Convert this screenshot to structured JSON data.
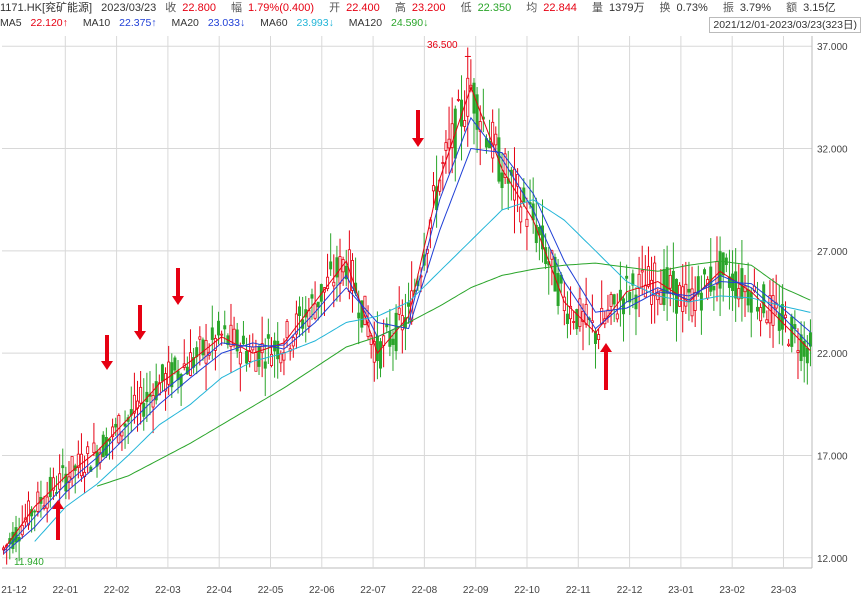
{
  "header": {
    "symbol": "1171.HK[兖矿能源]",
    "date": "2023/03/23",
    "close_label": "收",
    "close": "22.800",
    "range_label": "幅",
    "change": "1.79%(0.400)",
    "open_label": "开",
    "open": "22.400",
    "high_label": "高",
    "high": "23.200",
    "low_label": "低",
    "low": "22.350",
    "avg_label": "均",
    "avg": "22.844",
    "volume_label": "量",
    "volume": "1379万",
    "turnover_label": "换",
    "turnover": "0.73%",
    "amplitude_label": "振",
    "amplitude": "3.79%",
    "amount_label": "额",
    "amount": "3.15亿",
    "period": "2021/12/01-2023/03/23(323日)"
  },
  "ma_legend": [
    {
      "name": "MA5",
      "value": "22.120↑",
      "color": "#e60012"
    },
    {
      "name": "MA10",
      "value": "22.375↑",
      "color": "#1f3fd6"
    },
    {
      "name": "MA20",
      "value": "23.033↓",
      "color": "#1f3fd6"
    },
    {
      "name": "MA60",
      "value": "23.993↓",
      "color": "#22b5d8"
    },
    {
      "name": "MA120",
      "value": "24.590↓",
      "color": "#2aa52a"
    }
  ],
  "colors": {
    "up": "#e60012",
    "down": "#2aa52a",
    "ma5": "#e60012",
    "ma10": "#1f3fd6",
    "ma20": "#1f3fd6",
    "ma60": "#22b5d8",
    "ma120": "#2aa52a",
    "grid": "#d8d8d8",
    "arrow": "#e60012"
  },
  "chart_data": {
    "type": "candlestick",
    "y_axis": {
      "ticks": [
        "12.000",
        "17.000",
        "22.000",
        "27.000",
        "32.000",
        "37.000"
      ],
      "range": [
        11.5,
        37.5
      ],
      "side": "right"
    },
    "x_axis": {
      "ticks": [
        "21-12",
        "22-01",
        "22-02",
        "22-03",
        "22-04",
        "22-05",
        "22-06",
        "22-07",
        "22-08",
        "22-09",
        "22-10",
        "22-11",
        "22-12",
        "23-01",
        "23-02",
        "23-03"
      ]
    },
    "grid": true,
    "max_label": "36.500",
    "min_label": "11.940",
    "series": [
      {
        "name": "MA5",
        "points": [
          [
            0,
            12.4
          ],
          [
            10,
            14.5
          ],
          [
            20,
            16.0
          ],
          [
            30,
            17.2
          ],
          [
            40,
            18.8
          ],
          [
            50,
            20.5
          ],
          [
            60,
            21.6
          ],
          [
            70,
            22.8
          ],
          [
            80,
            22.0
          ],
          [
            90,
            22.5
          ],
          [
            100,
            24.5
          ],
          [
            110,
            26.5
          ],
          [
            120,
            22.0
          ],
          [
            130,
            23.8
          ],
          [
            140,
            30.5
          ],
          [
            150,
            35.0
          ],
          [
            160,
            31.0
          ],
          [
            170,
            28.5
          ],
          [
            180,
            24.5
          ],
          [
            190,
            23.0
          ],
          [
            200,
            25.0
          ],
          [
            210,
            25.5
          ],
          [
            220,
            24.5
          ],
          [
            230,
            26.0
          ],
          [
            240,
            25.0
          ],
          [
            250,
            23.5
          ],
          [
            259,
            22.12
          ]
        ]
      },
      {
        "name": "MA10",
        "points": [
          [
            0,
            12.3
          ],
          [
            10,
            14.0
          ],
          [
            20,
            15.6
          ],
          [
            30,
            16.9
          ],
          [
            40,
            18.5
          ],
          [
            50,
            20.0
          ],
          [
            60,
            21.2
          ],
          [
            70,
            22.5
          ],
          [
            80,
            22.3
          ],
          [
            90,
            22.4
          ],
          [
            100,
            24.0
          ],
          [
            110,
            25.8
          ],
          [
            120,
            22.8
          ],
          [
            130,
            23.5
          ],
          [
            140,
            29.5
          ],
          [
            150,
            33.5
          ],
          [
            160,
            31.5
          ],
          [
            170,
            29.0
          ],
          [
            180,
            25.5
          ],
          [
            190,
            23.2
          ],
          [
            200,
            24.5
          ],
          [
            210,
            25.2
          ],
          [
            220,
            24.6
          ],
          [
            230,
            25.8
          ],
          [
            240,
            25.2
          ],
          [
            250,
            23.8
          ],
          [
            259,
            22.375
          ]
        ]
      },
      {
        "name": "MA20",
        "points": [
          [
            0,
            12.2
          ],
          [
            10,
            13.5
          ],
          [
            20,
            15.2
          ],
          [
            30,
            16.5
          ],
          [
            40,
            18.0
          ],
          [
            50,
            19.5
          ],
          [
            60,
            20.8
          ],
          [
            70,
            22.0
          ],
          [
            80,
            22.5
          ],
          [
            90,
            22.2
          ],
          [
            100,
            23.5
          ],
          [
            110,
            25.2
          ],
          [
            120,
            23.5
          ],
          [
            130,
            23.2
          ],
          [
            140,
            28.0
          ],
          [
            150,
            32.0
          ],
          [
            160,
            31.8
          ],
          [
            170,
            29.8
          ],
          [
            180,
            26.5
          ],
          [
            190,
            24.0
          ],
          [
            200,
            24.2
          ],
          [
            210,
            25.0
          ],
          [
            220,
            24.8
          ],
          [
            230,
            25.5
          ],
          [
            240,
            25.4
          ],
          [
            250,
            24.2
          ],
          [
            259,
            23.033
          ]
        ]
      },
      {
        "name": "MA60",
        "points": [
          [
            10,
            12.8
          ],
          [
            20,
            14.5
          ],
          [
            30,
            15.6
          ],
          [
            40,
            17.0
          ],
          [
            50,
            18.5
          ],
          [
            60,
            19.5
          ],
          [
            70,
            20.8
          ],
          [
            80,
            21.6
          ],
          [
            90,
            22.0
          ],
          [
            100,
            22.6
          ],
          [
            110,
            23.5
          ],
          [
            120,
            23.8
          ],
          [
            130,
            24.5
          ],
          [
            140,
            26.0
          ],
          [
            150,
            27.5
          ],
          [
            160,
            29.0
          ],
          [
            170,
            29.5
          ],
          [
            180,
            28.5
          ],
          [
            190,
            27.0
          ],
          [
            200,
            25.5
          ],
          [
            210,
            24.8
          ],
          [
            220,
            24.5
          ],
          [
            230,
            24.8
          ],
          [
            240,
            24.7
          ],
          [
            250,
            24.3
          ],
          [
            259,
            23.993
          ]
        ]
      },
      {
        "name": "MA120",
        "points": [
          [
            30,
            15.5
          ],
          [
            40,
            16.0
          ],
          [
            50,
            16.8
          ],
          [
            60,
            17.6
          ],
          [
            70,
            18.5
          ],
          [
            80,
            19.4
          ],
          [
            90,
            20.3
          ],
          [
            100,
            21.3
          ],
          [
            110,
            22.3
          ],
          [
            120,
            22.8
          ],
          [
            130,
            23.5
          ],
          [
            140,
            24.3
          ],
          [
            150,
            25.2
          ],
          [
            160,
            25.8
          ],
          [
            170,
            26.1
          ],
          [
            180,
            26.3
          ],
          [
            190,
            26.4
          ],
          [
            200,
            26.2
          ],
          [
            210,
            26.0
          ],
          [
            220,
            26.3
          ],
          [
            230,
            26.5
          ],
          [
            240,
            26.3
          ],
          [
            250,
            25.2
          ],
          [
            259,
            24.59
          ]
        ]
      }
    ]
  }
}
